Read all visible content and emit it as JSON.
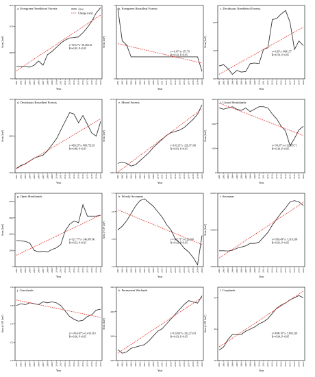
{
  "years": [
    "2001",
    "2002",
    "2003",
    "2004",
    "2005",
    "2006",
    "2007",
    "2008",
    "2009",
    "2010",
    "2011",
    "2012",
    "2013",
    "2014",
    "2015",
    "2016",
    "2017",
    "2018",
    "2019",
    "2020"
  ],
  "legend": {
    "area_label": "Area",
    "trend_label": "Change trend"
  },
  "colors": {
    "area": "#333333",
    "trend": "#e2231a"
  },
  "chart_data": [
    {
      "type": "line",
      "title": "a. Evergreen Needleleaf Forests",
      "xlabel": "Year",
      "ylabel": "Area (km²)",
      "ylim": [
        750,
        1450
      ],
      "yticks": [
        "750",
        "1000",
        "1250",
        "1450"
      ],
      "series": [
        {
          "name": "Area",
          "values": [
            870,
            868,
            866,
            862,
            880,
            920,
            880,
            980,
            1010,
            1050,
            1090,
            1120,
            1140,
            1145,
            1150,
            1190,
            1240,
            1300,
            1380,
            1430
          ]
        },
        {
          "name": "Change trend",
          "values": [
            827,
            855,
            883,
            911,
            939,
            967,
            995,
            1023,
            1051,
            1079,
            1107,
            1135,
            1163,
            1191,
            1219,
            1247,
            1275,
            1303,
            1331,
            1359
          ]
        }
      ],
      "equation": "y=30.51*x- 59,463.01",
      "r2": "R²=0.95, P<0.05"
    },
    {
      "type": "line",
      "title": "b. Evergreen Broadleaf Forests",
      "xlabel": "Year",
      "ylabel": "Area (km²)",
      "ylim": [
        0,
        5
      ],
      "yticks": [
        "0",
        "5"
      ],
      "series": [
        {
          "name": "Area",
          "values": [
            4.8,
            2.6,
            2.3,
            1.5,
            1.5,
            1.5,
            1.5,
            1.5,
            1.5,
            1.5,
            1.5,
            1.5,
            1.5,
            1.5,
            1.5,
            1.5,
            1.5,
            1.5,
            1.5,
            0.5
          ]
        },
        {
          "name": "Change trend",
          "values": [
            2.4,
            2.33,
            2.26,
            2.19,
            2.12,
            2.05,
            1.98,
            1.91,
            1.84,
            1.77,
            1.7,
            1.63,
            1.56,
            1.49,
            1.42,
            1.35,
            1.28,
            1.21,
            1.14,
            1.07
          ]
        }
      ],
      "equation": "y=-0.07*x+157.70",
      "r2": "R²=0.42, P<0.05"
    },
    {
      "type": "line",
      "title": "c. Deciduous Needleleaf Forests",
      "xlabel": "Year",
      "ylabel": "Area (km²)",
      "ylim": [
        100,
        230
      ],
      "yticks": [
        "100",
        "150",
        "200"
      ],
      "series": [
        {
          "name": "Area",
          "values": [
            123,
            125,
            118,
            108,
            115,
            112,
            113,
            127,
            128,
            127,
            152,
            155,
            205,
            207,
            215,
            221,
            200,
            152,
            167,
            159
          ]
        },
        {
          "name": "Change trend",
          "values": [
            108,
            112.4,
            116.8,
            121.2,
            125.6,
            130,
            134.4,
            138.8,
            143.2,
            147.6,
            152,
            156.4,
            160.8,
            165.2,
            169.6,
            174,
            178.4,
            182.8,
            187.2,
            191.6
          ]
        }
      ],
      "equation": "y=4.39*x- 8681.57",
      "r2": "R²=0.50, P<0.05"
    },
    {
      "type": "line",
      "title": "d. Deciduous Broadleaf Forests",
      "xlabel": "Year",
      "ylabel": "Area (km²)",
      "ylim": [
        4750,
        7250
      ],
      "yticks": [
        "4750",
        "6000",
        "7250"
      ],
      "series": [
        {
          "name": "Area",
          "values": [
            4900,
            5000,
            5050,
            5150,
            5250,
            5300,
            5350,
            5500,
            5700,
            5900,
            6200,
            6500,
            6800,
            6750,
            6450,
            6700,
            6400,
            6100,
            6000,
            6500
          ]
        },
        {
          "name": "Change trend",
          "values": [
            4880,
            4970,
            5060,
            5150,
            5240,
            5330,
            5420,
            5510,
            5600,
            5690,
            5780,
            5870,
            5960,
            6050,
            6140,
            6230,
            6320,
            6410,
            6500,
            6590
          ]
        }
      ],
      "equation": "y=469.25*x- 889,752.39",
      "r2": "R²=0.88, P<0.05"
    },
    {
      "type": "line",
      "title": "e. Mixed Forests",
      "xlabel": "Year",
      "ylabel": "Area (km²)",
      "ylim": [
        6000,
        8750
      ],
      "yticks": [
        "6000",
        "8750"
      ],
      "series": [
        {
          "name": "Area",
          "values": [
            6350,
            6400,
            6350,
            6250,
            6300,
            6450,
            6600,
            6750,
            6950,
            7100,
            7250,
            7400,
            7500,
            7550,
            7600,
            7700,
            7850,
            8000,
            8200,
            8550
          ]
        },
        {
          "name": "Change trend",
          "values": [
            6020,
            6145,
            6270,
            6395,
            6520,
            6645,
            6770,
            6895,
            7020,
            7145,
            7270,
            7395,
            7520,
            7645,
            7770,
            7895,
            8020,
            8145,
            8270,
            8395
          ]
        }
      ],
      "equation": "y=116.25*x- 226,371.86",
      "r2": "R²=0.93, P<0.05"
    },
    {
      "type": "line",
      "title": "f. Closed Shrublands",
      "xlabel": "Year",
      "ylabel": "Area (km²)",
      "ylim": [
        0,
        3000
      ],
      "yticks": [
        "0",
        "1000",
        "2000",
        "3000"
      ],
      "series": [
        {
          "name": "Area",
          "values": [
            2650,
            2600,
            2650,
            2700,
            2600,
            2550,
            2650,
            2500,
            2600,
            2700,
            2700,
            2650,
            2400,
            2200,
            1900,
            1700,
            1100,
            1400,
            1750,
            1900
          ]
        },
        {
          "name": "Change trend",
          "values": [
            2850,
            2780,
            2710,
            2640,
            2570,
            2500,
            2430,
            2360,
            2290,
            2220,
            2150,
            2080,
            2010,
            1940,
            1870,
            1800,
            1730,
            1660,
            1590,
            1520
          ]
        }
      ],
      "equation": "y=-54.67*x+112,395.71",
      "r2": "R²=0.39, P<0.05"
    },
    {
      "type": "line",
      "title": "g. Open Shrublands",
      "xlabel": "Year",
      "ylabel": "Area (km²)",
      "ylim": [
        0,
        4500
      ],
      "yticks": [
        "0",
        "1000",
        "2000",
        "3000",
        "4000"
      ],
      "series": [
        {
          "name": "Area",
          "values": [
            1600,
            1580,
            1550,
            1450,
            1000,
            900,
            950,
            900,
            1050,
            1150,
            1350,
            2200,
            2600,
            2800,
            2700,
            3800,
            3100,
            3100,
            3100,
            3150
          ]
        },
        {
          "name": "Change trend",
          "values": [
            700,
            830,
            960,
            1090,
            1220,
            1350,
            1480,
            1610,
            1740,
            1870,
            2000,
            2130,
            2260,
            2390,
            2520,
            2650,
            2780,
            2910,
            3040,
            3170
          ]
        }
      ],
      "equation": "y=121.77*x- 246,067.66",
      "r2": "R²=0.63, P<0.05"
    },
    {
      "type": "line",
      "title": "h. Woody Savannas",
      "xlabel": "Year",
      "ylabel": "Area (×10³ km²)",
      "ylim": [
        135,
        175
      ],
      "yticks": [
        "135",
        "150",
        "165",
        "175"
      ],
      "series": [
        {
          "name": "Area",
          "values": [
            155,
            157,
            160,
            164,
            168,
            171,
            172,
            170,
            168,
            165,
            162,
            158,
            155,
            150,
            148,
            145,
            143,
            140,
            136,
            152
          ]
        },
        {
          "name": "Change trend",
          "values": [
            166,
            165,
            164,
            163,
            162,
            161,
            160,
            159,
            158,
            157,
            156,
            155,
            154,
            153,
            152,
            151,
            150,
            149,
            148,
            147
          ]
        }
      ],
      "equation": "y=-102.71*x+222,100",
      "r2": "R²=0.42, P<0.05"
    },
    {
      "type": "line",
      "title": "i. Savannas",
      "xlabel": "Year",
      "ylabel": "Area (km²)",
      "ylim": [
        50000,
        80000
      ],
      "yticks": [
        "50000",
        "65000",
        "80000"
      ],
      "series": [
        {
          "name": "Area",
          "values": [
            56500,
            56500,
            56400,
            56700,
            57500,
            58000,
            58500,
            59500,
            59500,
            60000,
            62000,
            64000,
            67000,
            69500,
            72000,
            74000,
            76500,
            77000,
            76500,
            75000
          ]
        },
        {
          "name": "Change trend",
          "values": [
            53500,
            54700,
            55900,
            57100,
            58300,
            59500,
            60700,
            61900,
            63100,
            64300,
            65500,
            66700,
            67900,
            69100,
            70300,
            71500,
            72700,
            73900,
            75100,
            76300
          ]
        }
      ],
      "equation": "y=1663.49*x- 3,316,338",
      "r2": "R²=0.91, P<0.05"
    },
    {
      "type": "line",
      "title": "j. Grasslands",
      "xlabel": "Year",
      "ylabel": "Area (×10³ km²)",
      "ylim": [
        150,
        158
      ],
      "yticks": [
        "150",
        "152",
        "154",
        "156",
        "158"
      ],
      "series": [
        {
          "name": "Area",
          "values": [
            156.0,
            156.2,
            156.1,
            156.3,
            156.2,
            156.1,
            156.4,
            156.3,
            156.4,
            156.3,
            156.0,
            155.4,
            154.8,
            154.5,
            154.3,
            154.4,
            154.8,
            155.0,
            155.5,
            155.6
          ]
        },
        {
          "name": "Change trend",
          "values": [
            156.6,
            156.5,
            156.4,
            156.3,
            156.2,
            156.1,
            156.0,
            155.9,
            155.8,
            155.7,
            155.6,
            155.5,
            155.4,
            155.3,
            155.2,
            155.1,
            155.0,
            154.9,
            154.8,
            154.7
          ]
        }
      ],
      "equation": "y=-1014.45*x+5,416,510",
      "r2": "R²=0.66, P<0.05"
    },
    {
      "type": "line",
      "title": "k. Permanent Wetlands",
      "xlabel": "Year",
      "ylabel": "Area (km²)",
      "ylim": [
        2000,
        5000
      ],
      "yticks": [
        "2000",
        "3000",
        "4000",
        "5000"
      ],
      "series": [
        {
          "name": "Area",
          "values": [
            2450,
            2300,
            2350,
            2500,
            2550,
            2600,
            2650,
            2800,
            3000,
            3200,
            3300,
            3500,
            3700,
            3900,
            4100,
            4300,
            4450,
            4400,
            4350,
            4650
          ]
        },
        {
          "name": "Change trend",
          "values": [
            2300,
            2420,
            2540,
            2660,
            2780,
            2900,
            3020,
            3140,
            3260,
            3380,
            3500,
            3620,
            3740,
            3860,
            3980,
            4100,
            4220,
            4340,
            4460,
            4580
          ]
        }
      ],
      "equation": "y=133.60*x- 263,273.81",
      "r2": "R²=0.93, P<0.05"
    },
    {
      "type": "line",
      "title": "l. Croplands",
      "xlabel": "Year",
      "ylabel": "Area (×10³ km²)",
      "ylim": [
        39,
        46
      ],
      "yticks": [
        "39",
        "42",
        "45"
      ],
      "series": [
        {
          "name": "Area",
          "values": [
            40.0,
            40.3,
            41.0,
            41.5,
            41.5,
            41.5,
            41.8,
            42.0,
            42.2,
            42.5,
            42.7,
            43.0,
            43.5,
            44.0,
            44.3,
            44.5,
            44.8,
            45.0,
            45.2,
            45.0
          ]
        },
        {
          "name": "Change trend",
          "values": [
            40.3,
            40.58,
            40.86,
            41.14,
            41.42,
            41.7,
            41.98,
            42.26,
            42.54,
            42.82,
            43.1,
            43.38,
            43.66,
            43.94,
            44.22,
            44.5,
            44.78,
            45.06,
            45.34,
            45.62
          ]
        }
      ],
      "equation": "y=3090.10*x- 5,803,520",
      "r2": "R²=0.94, P<0.05"
    }
  ]
}
